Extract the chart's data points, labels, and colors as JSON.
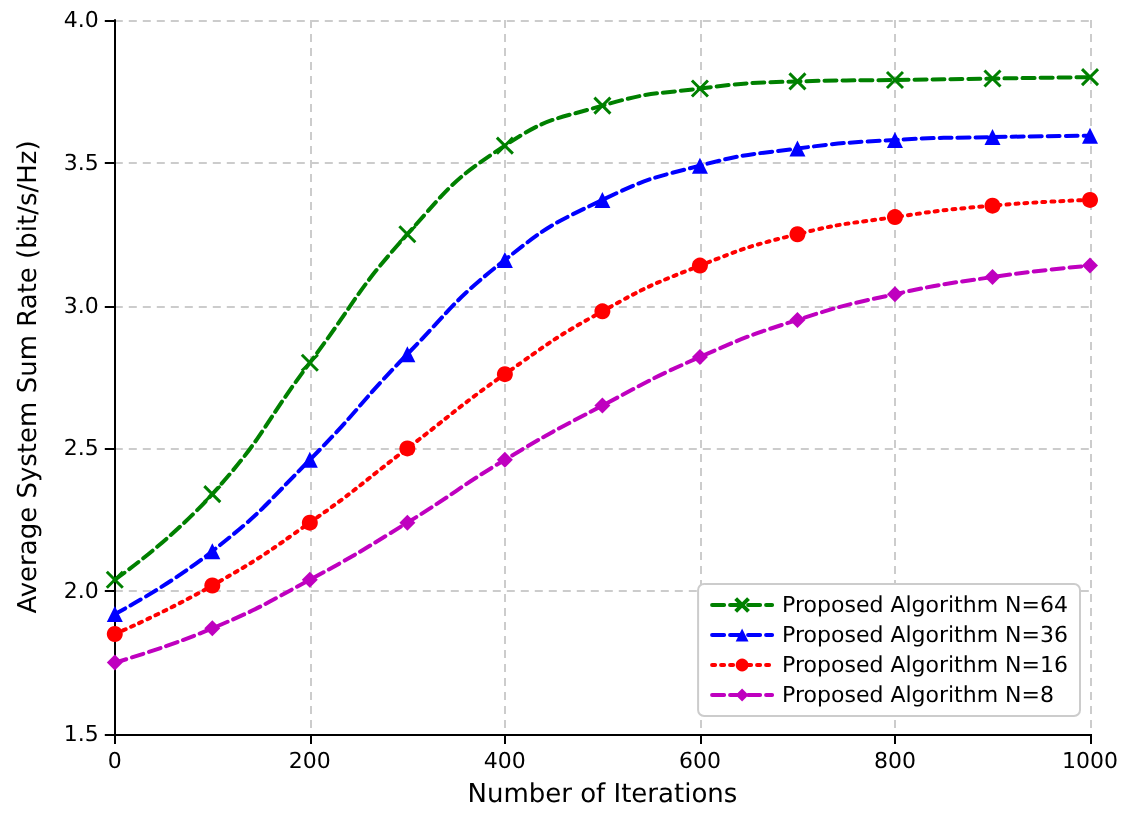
{
  "chart_data": {
    "type": "line",
    "xlabel": "Number of Iterations",
    "ylabel": "Average System Sum Rate (bit/s/Hz)",
    "x": [
      0,
      100,
      200,
      300,
      400,
      500,
      600,
      700,
      800,
      900,
      1000
    ],
    "series": [
      {
        "name": "Proposed Algorithm N=64",
        "color": "#008000",
        "marker": "cross",
        "line_style": "dashed",
        "values": [
          2.04,
          2.34,
          2.8,
          3.25,
          3.56,
          3.7,
          3.76,
          3.785,
          3.79,
          3.795,
          3.8
        ]
      },
      {
        "name": "Proposed Algorithm N=36",
        "color": "#0000ff",
        "marker": "triangle",
        "line_style": "dashed",
        "values": [
          1.92,
          2.14,
          2.46,
          2.83,
          3.16,
          3.37,
          3.49,
          3.55,
          3.58,
          3.59,
          3.595
        ]
      },
      {
        "name": "Proposed Algorithm N=16",
        "color": "#ff0000",
        "marker": "circle",
        "line_style": "dotted",
        "values": [
          1.85,
          2.02,
          2.24,
          2.5,
          2.76,
          2.98,
          3.14,
          3.25,
          3.31,
          3.35,
          3.37
        ]
      },
      {
        "name": "Proposed Algorithm N=8",
        "color": "#bf00bf",
        "marker": "diamond",
        "line_style": "dashed",
        "values": [
          1.75,
          1.87,
          2.04,
          2.24,
          2.46,
          2.65,
          2.82,
          2.95,
          3.04,
          3.1,
          3.14
        ]
      }
    ],
    "xlim": [
      0,
      1000
    ],
    "xticks": [
      0,
      200,
      400,
      600,
      800,
      1000
    ],
    "ylim": [
      1.5,
      4.0
    ],
    "yticks": [
      {
        "value": 1.5,
        "label": "1.5"
      },
      {
        "value": 2.0,
        "label": "2.0"
      },
      {
        "value": 2.5,
        "label": "2.5"
      },
      {
        "value": 3.0,
        "label": "3.0"
      },
      {
        "value": 3.5,
        "label": "3.5"
      },
      {
        "value": 4.0,
        "label": "4.0"
      }
    ],
    "grid": true,
    "legend": "bottom right"
  }
}
